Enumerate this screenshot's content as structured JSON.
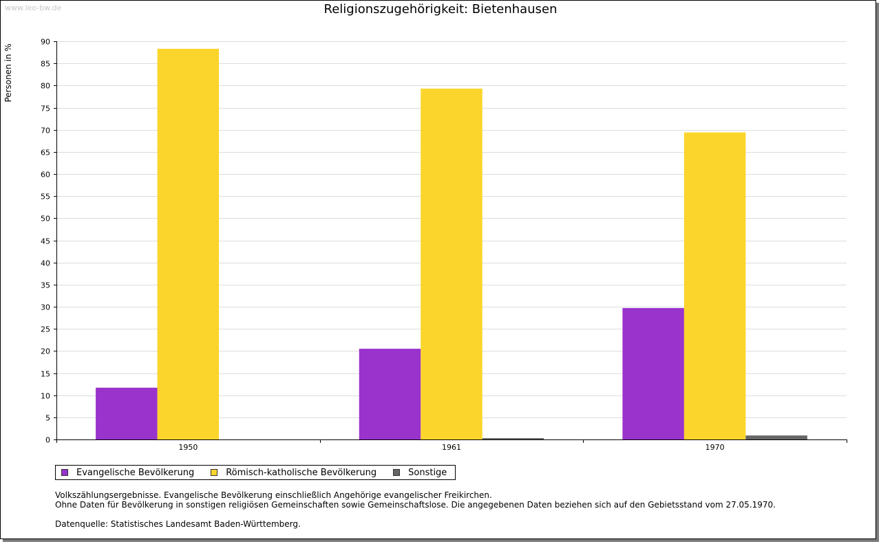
{
  "watermark": "www.leo-bw.de",
  "chart_data": {
    "type": "bar",
    "title": "Religionszugehörigkeit: Bietenhausen",
    "xlabel": "",
    "ylabel": "Personen in %",
    "ylim": [
      0,
      90
    ],
    "yticks": [
      0,
      5,
      10,
      15,
      20,
      25,
      30,
      35,
      40,
      45,
      50,
      55,
      60,
      65,
      70,
      75,
      80,
      85,
      90
    ],
    "categories": [
      "1950",
      "1961",
      "1970"
    ],
    "grid": true,
    "legend_position": "bottom-left",
    "series": [
      {
        "name": "Evangelische Bevölkerung",
        "color": "#9933cc",
        "values": [
          11.7,
          20.5,
          29.7
        ]
      },
      {
        "name": "Römisch-katholische Bevölkerung",
        "color": "#fcd52c",
        "values": [
          88.3,
          79.3,
          69.4
        ]
      },
      {
        "name": "Sonstige",
        "color": "#666666",
        "values": [
          0,
          0.3,
          0.9
        ]
      }
    ]
  },
  "notes": {
    "line1": "Volkszählungsergebnisse. Evangelische Bevölkerung einschließlich Angehörige evangelischer Freikirchen.",
    "line2": "Ohne Daten für Bevölkerung in sonstigen religiösen Gemeinschaften sowie Gemeinschaftslose. Die angegebenen Daten beziehen sich auf den Gebietsstand vom 27.05.1970.",
    "source": "Datenquelle: Statistisches Landesamt Baden-Württemberg."
  }
}
